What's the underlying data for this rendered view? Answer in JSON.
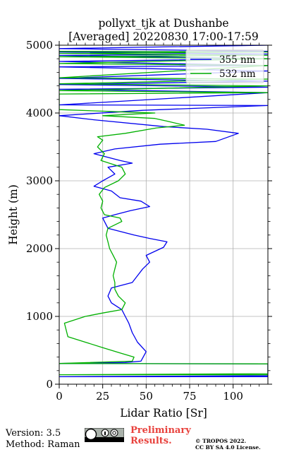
{
  "chart_data": {
    "type": "line",
    "title": "pollyxt_tjk at Dushanbe",
    "subtitle": "[Averaged] 20220830 17:00-17:59",
    "xlabel": "Lidar Ratio [Sr]",
    "ylabel": "Height (m)",
    "xlim": [
      0,
      120
    ],
    "ylim": [
      0,
      5000
    ],
    "xticks": [
      0,
      25,
      50,
      75,
      100
    ],
    "yticks": [
      0,
      1000,
      2000,
      3000,
      4000,
      5000
    ],
    "grid": true,
    "legend_position": "top-right",
    "series": [
      {
        "name": "355 nm",
        "color": "#0000ee",
        "points": [
          [
            120,
            110
          ],
          [
            0,
            110
          ],
          [
            120,
            125
          ],
          [
            120,
            300
          ],
          [
            0,
            305
          ],
          [
            38,
            320
          ],
          [
            47,
            340
          ],
          [
            50,
            480
          ],
          [
            45,
            620
          ],
          [
            42,
            760
          ],
          [
            40,
            900
          ],
          [
            38,
            1000
          ],
          [
            36,
            1100
          ],
          [
            30,
            1200
          ],
          [
            28,
            1300
          ],
          [
            30,
            1420
          ],
          [
            42,
            1500
          ],
          [
            45,
            1600
          ],
          [
            48,
            1700
          ],
          [
            52,
            1800
          ],
          [
            50,
            1900
          ],
          [
            60,
            2020
          ],
          [
            62,
            2100
          ],
          [
            52,
            2150
          ],
          [
            43,
            2200
          ],
          [
            28,
            2300
          ],
          [
            25,
            2450
          ],
          [
            32,
            2500
          ],
          [
            41,
            2560
          ],
          [
            52,
            2620
          ],
          [
            47,
            2700
          ],
          [
            35,
            2750
          ],
          [
            30,
            2850
          ],
          [
            20,
            2920
          ],
          [
            25,
            3000
          ],
          [
            32,
            3100
          ],
          [
            28,
            3200
          ],
          [
            42,
            3260
          ],
          [
            35,
            3300
          ],
          [
            20,
            3400
          ],
          [
            32,
            3470
          ],
          [
            58,
            3540
          ],
          [
            90,
            3580
          ],
          [
            103,
            3700
          ],
          [
            85,
            3760
          ],
          [
            60,
            3800
          ],
          [
            20,
            3900
          ],
          [
            0,
            3960
          ],
          [
            48,
            4040
          ],
          [
            120,
            4110
          ],
          [
            0,
            4120
          ],
          [
            120,
            4300
          ],
          [
            0,
            4350
          ],
          [
            120,
            4380
          ],
          [
            0,
            4420
          ],
          [
            120,
            4470
          ],
          [
            0,
            4510
          ],
          [
            120,
            4620
          ],
          [
            0,
            4680
          ],
          [
            120,
            4700
          ],
          [
            0,
            4760
          ],
          [
            120,
            4800
          ],
          [
            0,
            4850
          ],
          [
            120,
            4870
          ],
          [
            0,
            4900
          ],
          [
            120,
            4910
          ],
          [
            0,
            4950
          ],
          [
            120,
            5000
          ]
        ]
      },
      {
        "name": "532 nm",
        "color": "#00b000",
        "points": [
          [
            120,
            140
          ],
          [
            0,
            140
          ],
          [
            120,
            155
          ],
          [
            120,
            300
          ],
          [
            0,
            305
          ],
          [
            42,
            340
          ],
          [
            43,
            400
          ],
          [
            35,
            460
          ],
          [
            25,
            540
          ],
          [
            15,
            620
          ],
          [
            5,
            700
          ],
          [
            3,
            900
          ],
          [
            15,
            1000
          ],
          [
            25,
            1050
          ],
          [
            36,
            1100
          ],
          [
            38,
            1200
          ],
          [
            34,
            1300
          ],
          [
            32,
            1400
          ],
          [
            32,
            1500
          ],
          [
            31,
            1600
          ],
          [
            32,
            1700
          ],
          [
            33,
            1800
          ],
          [
            31,
            1900
          ],
          [
            29,
            2000
          ],
          [
            28,
            2100
          ],
          [
            27,
            2200
          ],
          [
            28,
            2300
          ],
          [
            36,
            2400
          ],
          [
            35,
            2450
          ],
          [
            26,
            2500
          ],
          [
            24,
            2600
          ],
          [
            25,
            2700
          ],
          [
            23,
            2800
          ],
          [
            26,
            2900
          ],
          [
            34,
            3000
          ],
          [
            38,
            3100
          ],
          [
            36,
            3200
          ],
          [
            24,
            3300
          ],
          [
            26,
            3400
          ],
          [
            22,
            3500
          ],
          [
            25,
            3600
          ],
          [
            22,
            3650
          ],
          [
            38,
            3700
          ],
          [
            56,
            3780
          ],
          [
            72,
            3820
          ],
          [
            62,
            3880
          ],
          [
            55,
            3920
          ],
          [
            25,
            3960
          ],
          [
            55,
            4000
          ],
          [
            0,
            4050
          ],
          [
            0,
            4280
          ],
          [
            120,
            4300
          ],
          [
            0,
            4330
          ],
          [
            120,
            4400
          ],
          [
            0,
            4430
          ],
          [
            120,
            4500
          ],
          [
            0,
            4520
          ],
          [
            120,
            4700
          ],
          [
            0,
            4730
          ],
          [
            120,
            4800
          ],
          [
            0,
            4830
          ],
          [
            120,
            4850
          ],
          [
            0,
            4880
          ],
          [
            120,
            4900
          ],
          [
            0,
            4910
          ]
        ]
      }
    ]
  },
  "footer": {
    "version": "Version: 3.5",
    "method": "Method: Raman",
    "preliminary": "Preliminary Results.",
    "copyright_line1": "© TROPOS 2022.",
    "copyright_line2": "CC BY SA 4.0 License."
  }
}
